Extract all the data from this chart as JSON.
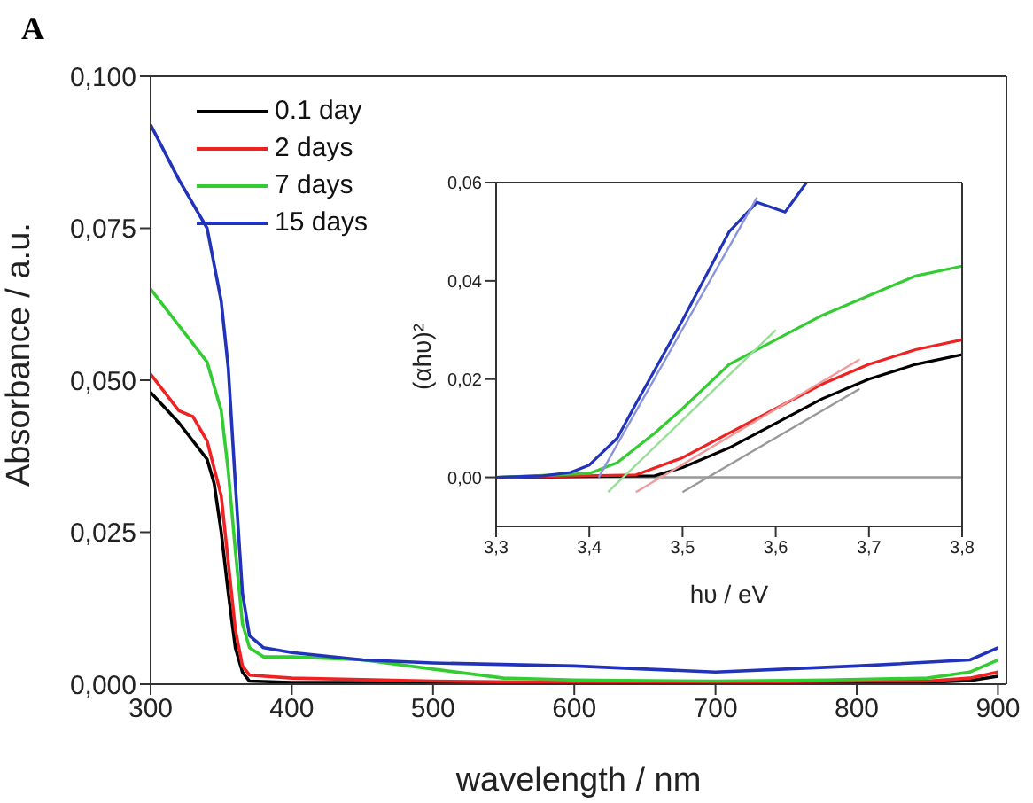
{
  "chart_data": [
    {
      "type": "line",
      "annotations": [
        "A"
      ],
      "xlabel": "wavelength / nm",
      "ylabel": "Absorbance / a.u.",
      "xlim": [
        300,
        906
      ],
      "xticks": [
        300,
        400,
        500,
        600,
        700,
        800,
        900
      ],
      "ylim": [
        0,
        0.1
      ],
      "yticks": [
        {
          "value": 0,
          "label": "0,000"
        },
        {
          "value": 0.025,
          "label": "0,025"
        },
        {
          "value": 0.05,
          "label": "0,050"
        },
        {
          "value": 0.075,
          "label": "0,075"
        },
        {
          "value": 0.1,
          "label": "0,100"
        }
      ],
      "grid": false,
      "legend": "top left",
      "series": [
        {
          "name": "0.1 day",
          "color": "#000000",
          "x": [
            300,
            320,
            340,
            345,
            350,
            355,
            360,
            365,
            370,
            400,
            500,
            600,
            700,
            800,
            850,
            880,
            900
          ],
          "values": [
            0.048,
            0.043,
            0.037,
            0.033,
            0.025,
            0.015,
            0.006,
            0.002,
            0.0005,
            0.0003,
            0.0003,
            0.0002,
            0.0002,
            0.0002,
            0.0003,
            0.0006,
            0.0013
          ]
        },
        {
          "name": "2 days",
          "color": "#ee2222",
          "x": [
            300,
            320,
            330,
            340,
            350,
            355,
            360,
            365,
            370,
            400,
            500,
            600,
            700,
            800,
            850,
            880,
            900
          ],
          "values": [
            0.051,
            0.045,
            0.044,
            0.04,
            0.031,
            0.02,
            0.009,
            0.003,
            0.0015,
            0.001,
            0.0005,
            0.0003,
            0.0003,
            0.0005,
            0.0005,
            0.001,
            0.002
          ]
        },
        {
          "name": "7 days",
          "color": "#33cc33",
          "x": [
            300,
            320,
            340,
            350,
            355,
            360,
            365,
            370,
            380,
            400,
            450,
            500,
            550,
            600,
            700,
            780,
            850,
            880,
            900
          ],
          "values": [
            0.065,
            0.059,
            0.053,
            0.045,
            0.035,
            0.022,
            0.01,
            0.006,
            0.0045,
            0.0045,
            0.004,
            0.0025,
            0.001,
            0.0007,
            0.0005,
            0.0007,
            0.001,
            0.002,
            0.004
          ]
        },
        {
          "name": "15 days",
          "color": "#2233bb",
          "x": [
            300,
            320,
            340,
            345,
            350,
            355,
            360,
            365,
            370,
            380,
            400,
            450,
            500,
            600,
            650,
            700,
            800,
            880,
            900
          ],
          "values": [
            0.092,
            0.083,
            0.075,
            0.069,
            0.063,
            0.052,
            0.033,
            0.015,
            0.008,
            0.006,
            0.0052,
            0.004,
            0.0035,
            0.003,
            0.0025,
            0.002,
            0.003,
            0.004,
            0.006
          ]
        }
      ]
    },
    {
      "type": "line",
      "xlabel": "hυ / eV",
      "ylabel": "(αhυ)²",
      "xlim": [
        3.3,
        3.8
      ],
      "xticks": [
        {
          "value": 3.3,
          "label": "3,3"
        },
        {
          "value": 3.4,
          "label": "3,4"
        },
        {
          "value": 3.5,
          "label": "3,5"
        },
        {
          "value": 3.6,
          "label": "3,6"
        },
        {
          "value": 3.7,
          "label": "3,7"
        },
        {
          "value": 3.8,
          "label": "3,8"
        }
      ],
      "ylim": [
        -0.01,
        0.06
      ],
      "yticks": [
        {
          "value": 0,
          "label": "0,00"
        },
        {
          "value": 0.02,
          "label": "0,02"
        },
        {
          "value": 0.04,
          "label": "0,04"
        },
        {
          "value": 0.06,
          "label": "0,06"
        }
      ],
      "grid": false,
      "ref_lines": [
        {
          "axis": "y",
          "value": 0,
          "color": "#999999"
        }
      ],
      "series": [
        {
          "color": "#000000",
          "x": [
            3.3,
            3.47,
            3.5,
            3.55,
            3.6,
            3.65,
            3.7,
            3.75,
            3.8
          ],
          "values": [
            0,
            0.0003,
            0.002,
            0.006,
            0.011,
            0.016,
            0.02,
            0.023,
            0.025
          ]
        },
        {
          "color": "#ee2222",
          "x": [
            3.3,
            3.45,
            3.5,
            3.55,
            3.6,
            3.65,
            3.7,
            3.75,
            3.8
          ],
          "values": [
            0,
            0.0005,
            0.004,
            0.009,
            0.014,
            0.019,
            0.023,
            0.026,
            0.028
          ]
        },
        {
          "color": "#33cc33",
          "x": [
            3.3,
            3.4,
            3.43,
            3.47,
            3.5,
            3.55,
            3.6,
            3.65,
            3.7,
            3.75,
            3.8
          ],
          "values": [
            0,
            0.0008,
            0.003,
            0.009,
            0.014,
            0.023,
            0.028,
            0.033,
            0.037,
            0.041,
            0.043
          ]
        },
        {
          "color": "#2233bb",
          "x": [
            3.3,
            3.35,
            3.38,
            3.4,
            3.43,
            3.45,
            3.5,
            3.55,
            3.58,
            3.61,
            3.633
          ],
          "values": [
            0,
            0.0003,
            0.001,
            0.0025,
            0.008,
            0.015,
            0.032,
            0.05,
            0.056,
            0.054,
            0.06
          ]
        },
        {
          "type": "line",
          "color": "#999999",
          "x": [
            3.5,
            3.69
          ],
          "values": [
            -0.003,
            0.018
          ]
        },
        {
          "type": "line",
          "color": "#f29a9a",
          "x": [
            3.45,
            3.69
          ],
          "values": [
            -0.003,
            0.024
          ]
        },
        {
          "type": "line",
          "color": "#99dd99",
          "x": [
            3.42,
            3.6
          ],
          "values": [
            -0.003,
            0.03
          ]
        },
        {
          "type": "line",
          "color": "#8a93dd",
          "x": [
            3.41,
            3.58
          ],
          "values": [
            0,
            0.057
          ]
        }
      ]
    }
  ]
}
